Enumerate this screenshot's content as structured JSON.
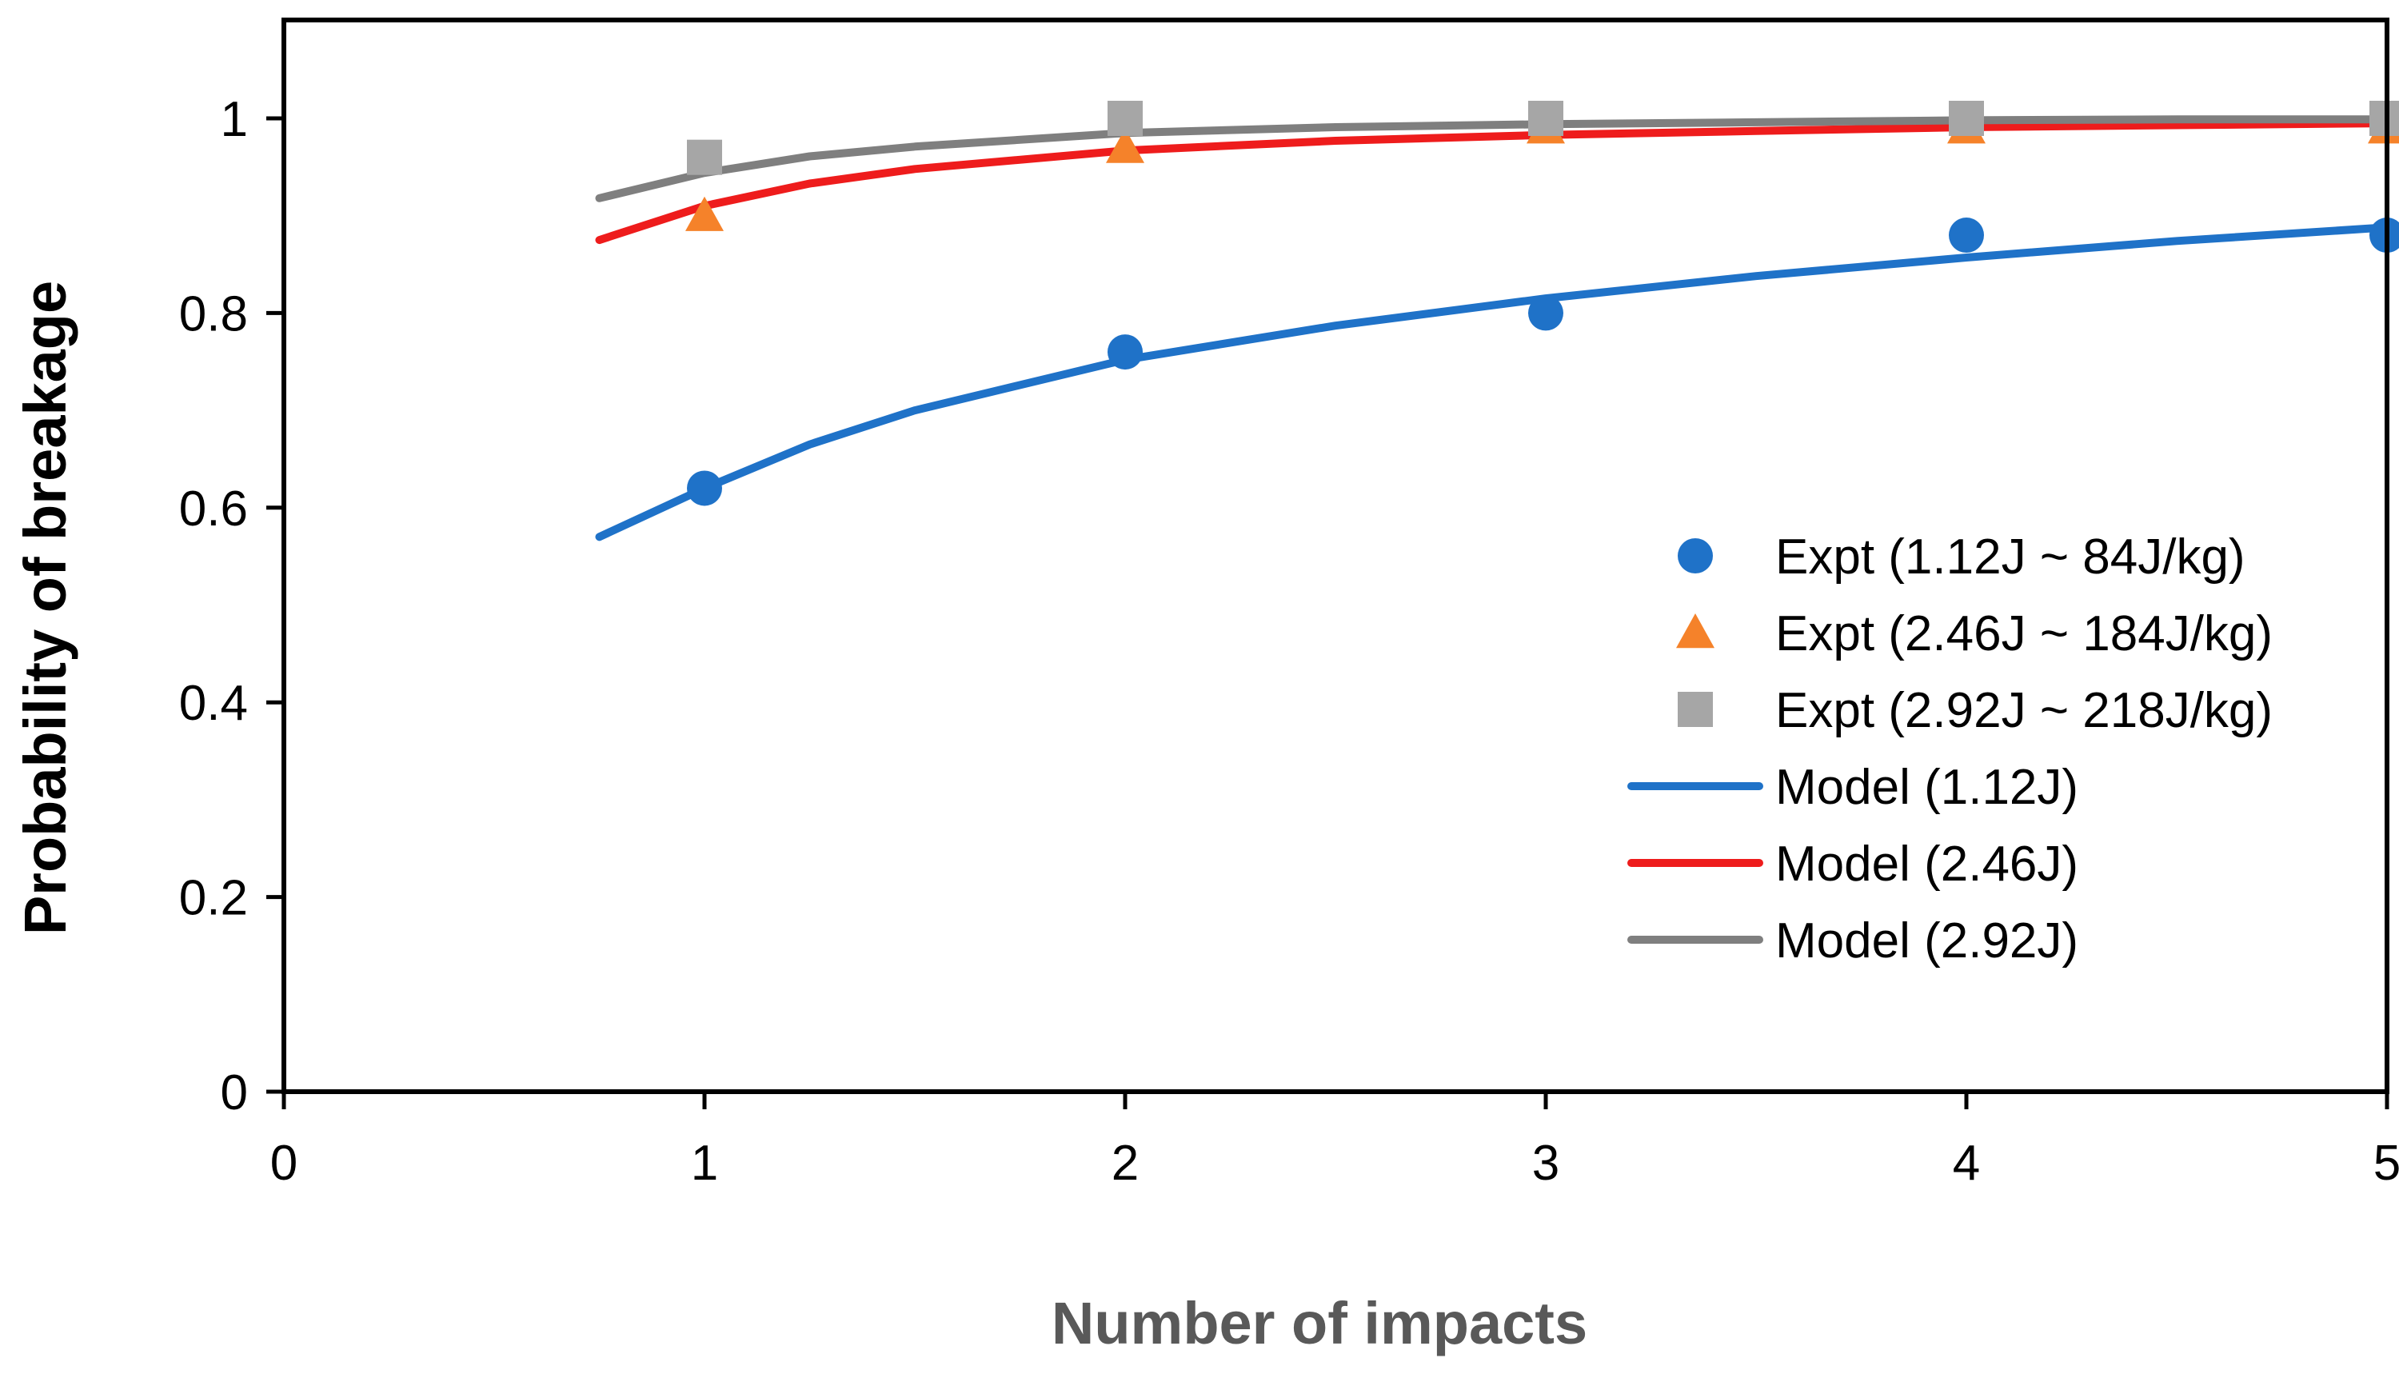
{
  "chart_data": {
    "type": "scatter",
    "title": "",
    "xlabel": "Number of impacts",
    "ylabel": "Probability of breakage",
    "xlim": [
      0,
      5
    ],
    "ylim": [
      0,
      1.1
    ],
    "x_ticks": [
      "0",
      "1",
      "2",
      "3",
      "4",
      "5"
    ],
    "y_ticks": [
      "0",
      "0.2",
      "0.4",
      "0.6",
      "0.8",
      "1"
    ],
    "grid": false,
    "legend_position": "right",
    "series": [
      {
        "name": "Expt (1.12J ~ 84J/kg)",
        "kind": "points",
        "marker": "circle",
        "color": "#1f72c8",
        "x": [
          1,
          2,
          3,
          4,
          5
        ],
        "y": [
          0.62,
          0.76,
          0.8,
          0.88,
          0.88
        ]
      },
      {
        "name": "Expt (2.46J ~ 184J/kg)",
        "kind": "points",
        "marker": "triangle",
        "color": "#f5822a",
        "x": [
          1,
          2,
          3,
          4,
          5
        ],
        "y": [
          0.9,
          0.97,
          0.99,
          0.99,
          0.99
        ]
      },
      {
        "name": "Expt (2.92J ~ 218J/kg)",
        "kind": "points",
        "marker": "square",
        "color": "#a6a6a6",
        "x": [
          1,
          2,
          3,
          4,
          5
        ],
        "y": [
          0.96,
          1.0,
          1.0,
          1.0,
          1.0
        ]
      },
      {
        "name": "Model (1.12J)",
        "kind": "line",
        "color": "#1f72c8",
        "x": [
          0.75,
          1,
          1.25,
          1.5,
          2,
          2.5,
          3,
          3.5,
          4,
          4.5,
          5
        ],
        "y": [
          0.57,
          0.62,
          0.665,
          0.7,
          0.752,
          0.787,
          0.815,
          0.838,
          0.857,
          0.874,
          0.888
        ]
      },
      {
        "name": "Model (2.46J)",
        "kind": "line",
        "color": "#ee1c1c",
        "x": [
          0.75,
          1,
          1.25,
          1.5,
          2,
          2.5,
          3,
          3.5,
          4,
          4.5,
          5
        ],
        "y": [
          0.875,
          0.91,
          0.933,
          0.948,
          0.967,
          0.977,
          0.983,
          0.987,
          0.991,
          0.993,
          0.995
        ]
      },
      {
        "name": "Model (2.92J)",
        "kind": "line",
        "color": "#7f7f7f",
        "x": [
          0.75,
          1,
          1.25,
          1.5,
          2,
          2.5,
          3,
          3.5,
          4,
          4.5,
          5
        ],
        "y": [
          0.918,
          0.944,
          0.961,
          0.971,
          0.985,
          0.991,
          0.994,
          0.996,
          0.998,
          0.999,
          0.999
        ]
      }
    ]
  },
  "colors": {
    "axis": "#000000",
    "axis_title_color": "#595959",
    "y_title_color": "#000000"
  }
}
